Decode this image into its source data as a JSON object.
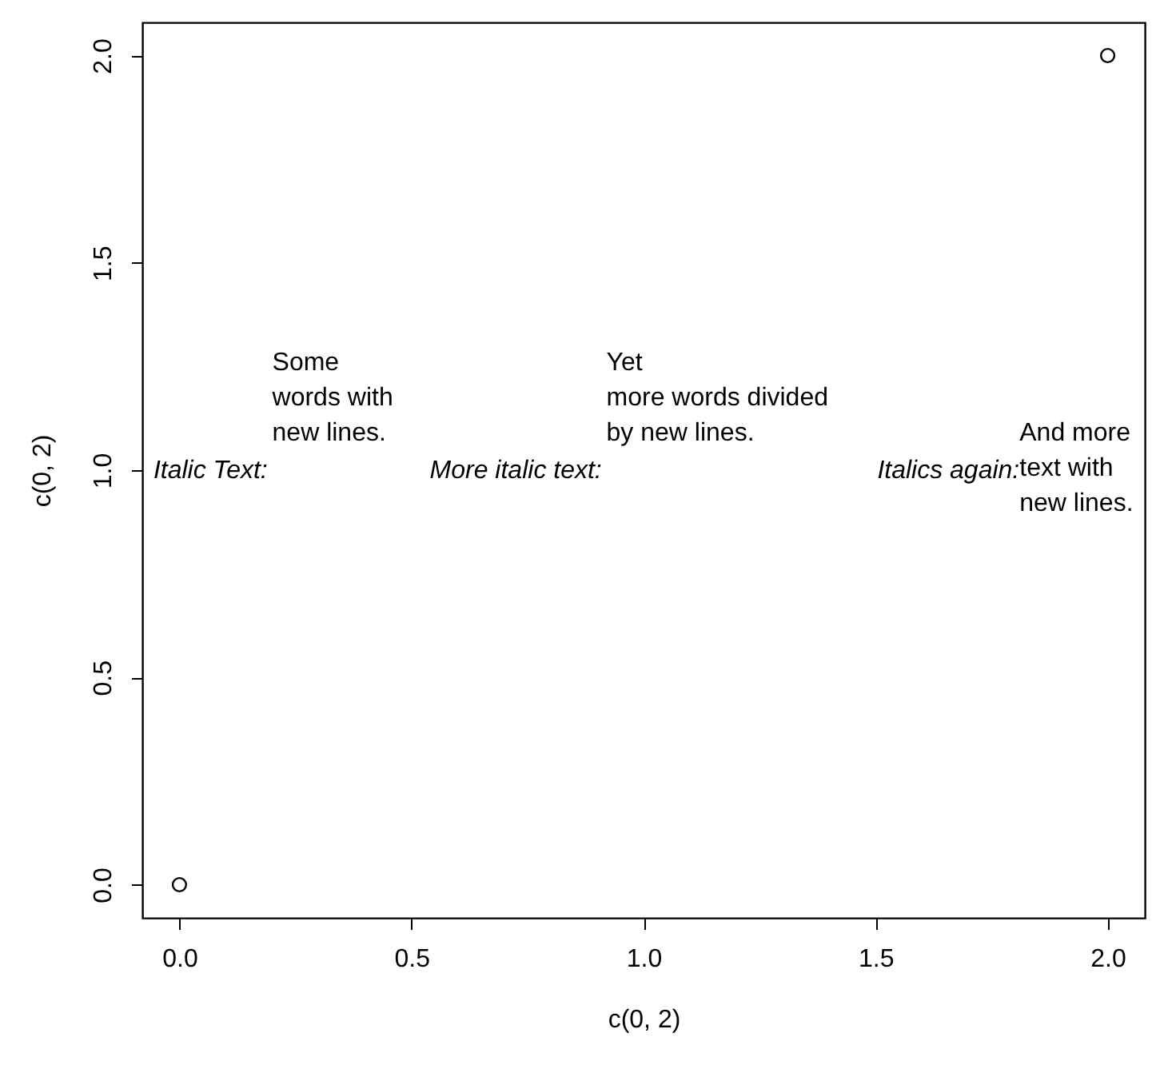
{
  "chart_data": {
    "type": "scatter",
    "xlabel": "c(0, 2)",
    "ylabel": "c(0, 2)",
    "x": [
      0,
      2
    ],
    "series": [
      {
        "color": "#000000",
        "values": [
          0,
          2
        ]
      }
    ],
    "marker": "circle",
    "grid": false,
    "xlim": [
      -0.08,
      2.08
    ],
    "ylim": [
      -0.08,
      2.08
    ],
    "xticks": [
      {
        "value": 0,
        "label": "0.0"
      },
      {
        "value": 0.5,
        "label": "0.5"
      },
      {
        "value": 1,
        "label": "1.0"
      },
      {
        "value": 1.5,
        "label": "1.5"
      },
      {
        "value": 2,
        "label": "2.0"
      }
    ],
    "yticks": [
      {
        "value": 0,
        "label": "0.0"
      },
      {
        "value": 0.5,
        "label": "0.5"
      },
      {
        "value": 1,
        "label": "1.0"
      },
      {
        "value": 1.5,
        "label": "1.5"
      },
      {
        "value": 2,
        "label": "2.0"
      }
    ],
    "annotations": [
      "Italic Text:",
      " Some\nwords with\nnew lines.",
      "More italic text:",
      "Yet\nmore words divided\nby new lines.",
      "Italics again:",
      "And more\ntext with\nnew lines."
    ]
  }
}
